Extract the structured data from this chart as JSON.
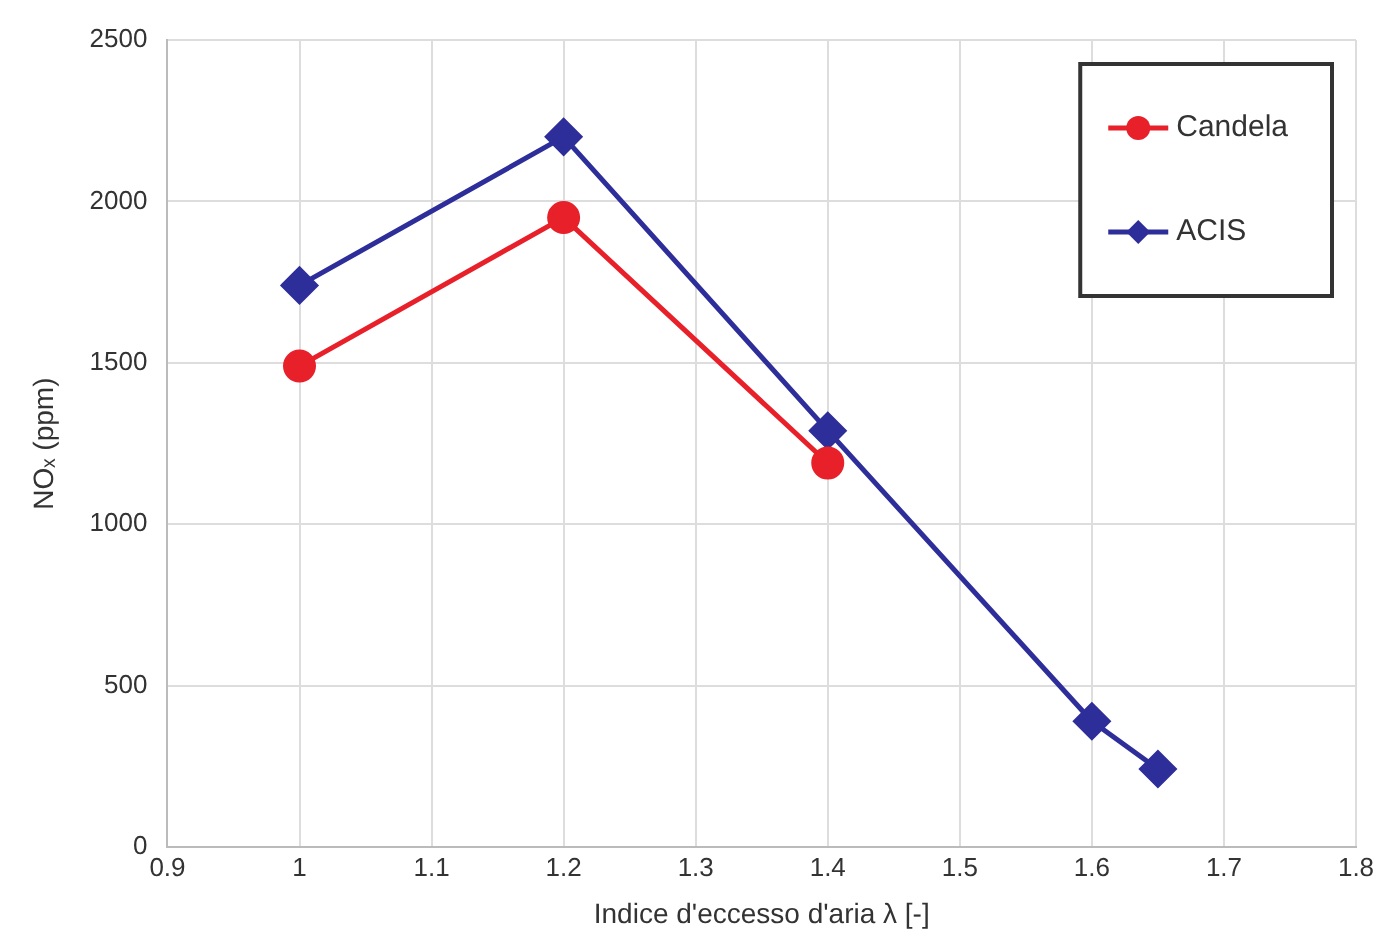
{
  "chart_data": {
    "type": "line",
    "xlabel": "Indice d'eccesso d'aria λ [-]",
    "ylabel": "NOₓ (ppm)",
    "x": [
      1,
      1.2,
      1.4,
      1.6,
      1.65
    ],
    "series": [
      {
        "name": "Candela",
        "color": "#e8202a",
        "marker": "circle",
        "values": [
          1490,
          1950,
          1190,
          null,
          null
        ]
      },
      {
        "name": "ACIS",
        "color": "#2e2e9a",
        "marker": "diamond",
        "values": [
          1740,
          2200,
          1290,
          390,
          242
        ]
      }
    ],
    "xlim": [
      0.9,
      1.8
    ],
    "xticks": [
      0.9,
      1,
      1.1,
      1.2,
      1.3,
      1.4,
      1.5,
      1.6,
      1.7,
      1.8
    ],
    "ylim": [
      0,
      2500
    ],
    "yticks": [
      0,
      500,
      1000,
      1500,
      2000,
      2500
    ],
    "grid": true,
    "legend": "top right"
  }
}
